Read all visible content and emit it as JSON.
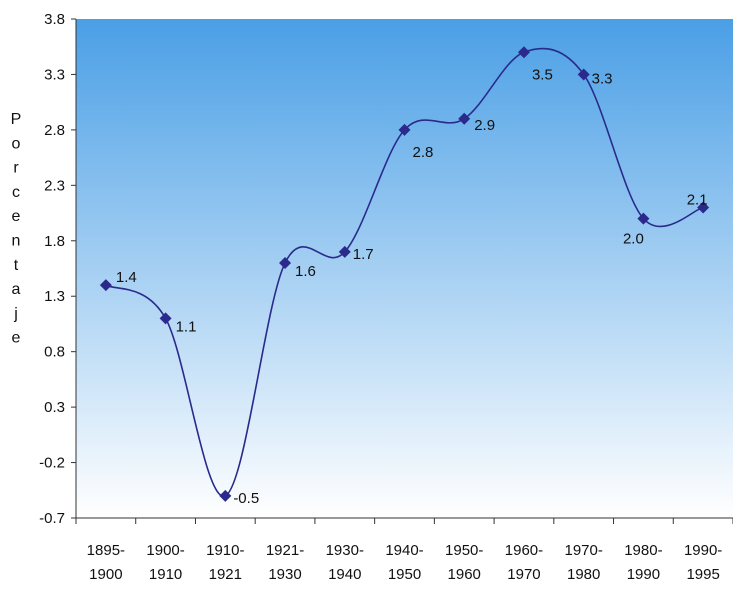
{
  "chart_data": {
    "type": "line",
    "title": "",
    "xlabel": "",
    "ylabel": "Porcentaje",
    "categories": [
      [
        "1895-",
        "1900"
      ],
      [
        "1900-",
        "1910"
      ],
      [
        "1910-",
        "1921"
      ],
      [
        "1921-",
        "1930"
      ],
      [
        "1930-",
        "1940"
      ],
      [
        "1940-",
        "1950"
      ],
      [
        "1950-",
        "1960"
      ],
      [
        "1960-",
        "1970"
      ],
      [
        "1970-",
        "1980"
      ],
      [
        "1980-",
        "1990"
      ],
      [
        "1990-",
        "1995"
      ]
    ],
    "values": [
      1.4,
      1.1,
      -0.5,
      1.6,
      1.7,
      2.8,
      2.9,
      3.5,
      3.3,
      2.0,
      2.1
    ],
    "data_labels": [
      "1.4",
      "1.1",
      "-0.5",
      "1.6",
      "1.7",
      "2.8",
      "2.9",
      "3.5",
      "3.3",
      "2.0",
      "2.1"
    ],
    "yticks": [
      "3.8",
      "3.3",
      "2.8",
      "2.3",
      "1.8",
      "1.3",
      "0.8",
      "0.3",
      "-0.2",
      "-0.7"
    ],
    "ylim": [
      -0.7,
      3.8
    ],
    "smooth": true,
    "grid": false,
    "legend": "none",
    "colors": {
      "line": "#2a2a8c",
      "marker": "#2a2a8c",
      "plot_gradient_top": "#4a9fe6",
      "plot_gradient_bottom": "#ffffff"
    }
  }
}
